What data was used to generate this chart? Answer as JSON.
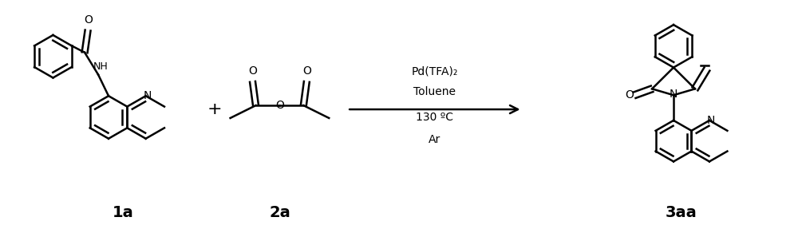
{
  "background_color": "#ffffff",
  "fig_width": 10.0,
  "fig_height": 2.87,
  "dpi": 100,
  "label_1a": "1a",
  "label_2a": "2a",
  "label_3aa": "3aa",
  "plus_sign": "+",
  "arrow_conditions": [
    "Pd(TFA)₂",
    "Toluene",
    "130 ºC",
    "Ar"
  ],
  "label_fontsize": 14,
  "condition_fontsize": 10,
  "text_color": "#000000",
  "lw": 1.8
}
